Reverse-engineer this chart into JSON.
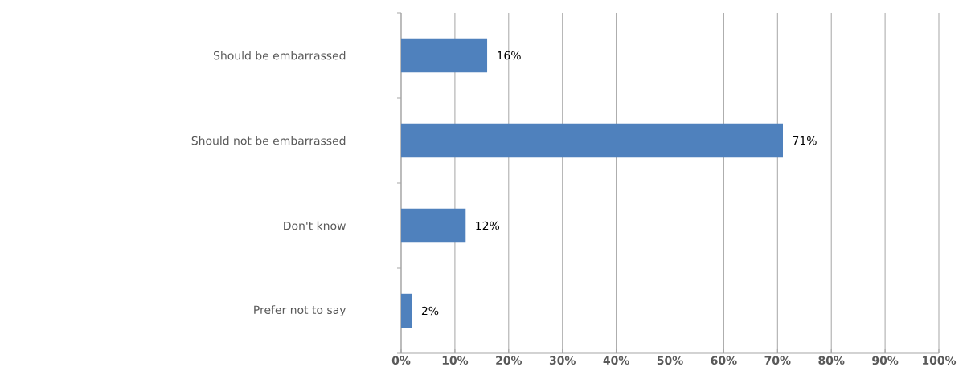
{
  "chart_data": {
    "type": "bar",
    "orientation": "horizontal",
    "categories": [
      "Should be embarrassed",
      "Should not be embarrassed",
      "Don't know",
      "Prefer not to say"
    ],
    "values": [
      16,
      71,
      12,
      2
    ],
    "value_labels": [
      "16%",
      "71%",
      "12%",
      "2%"
    ],
    "color": "#4f81bd",
    "xlim": [
      0,
      100
    ],
    "xticks": [
      {
        "value": 0,
        "label": "0%"
      },
      {
        "value": 10,
        "label": "10%"
      },
      {
        "value": 20,
        "label": "20%"
      },
      {
        "value": 30,
        "label": "30%"
      },
      {
        "value": 40,
        "label": "40%"
      },
      {
        "value": 50,
        "label": "50%"
      },
      {
        "value": 60,
        "label": "60%"
      },
      {
        "value": 70,
        "label": "70%"
      },
      {
        "value": 80,
        "label": "80%"
      },
      {
        "value": 90,
        "label": "90%"
      },
      {
        "value": 100,
        "label": "100%"
      }
    ],
    "grid": "x"
  }
}
